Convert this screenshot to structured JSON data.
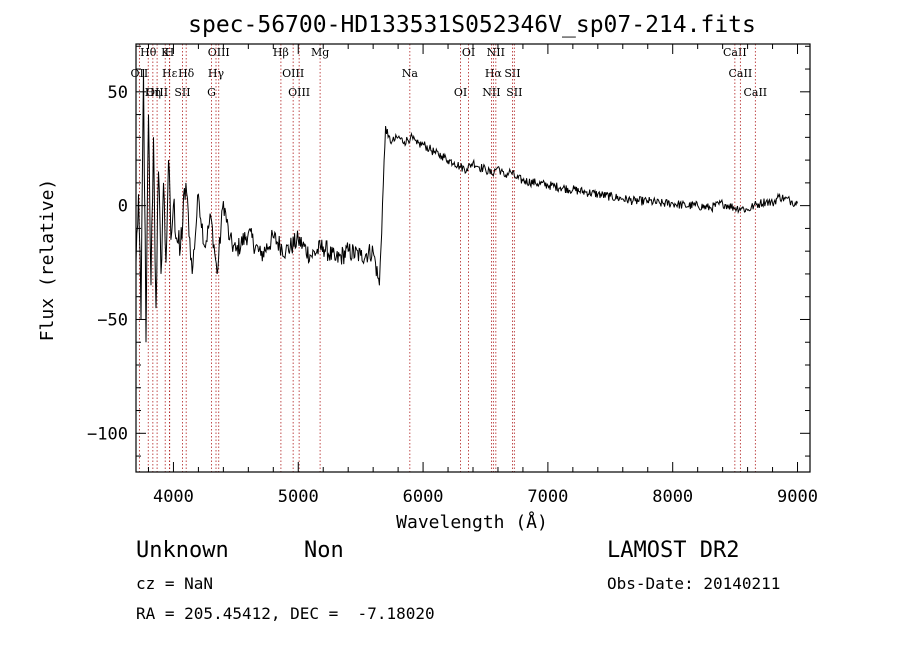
{
  "chart_data": {
    "type": "line",
    "title": "spec-56700-HD133531S052346V_sp07-214.fits",
    "xlabel": "Wavelength (Å)",
    "ylabel": "Flux (relative)",
    "xlim": [
      3700,
      9100
    ],
    "ylim": [
      -117,
      71
    ],
    "x_ticks": [
      4000,
      5000,
      6000,
      7000,
      8000,
      9000
    ],
    "x_tick_labels": [
      "4000",
      "5000",
      "6000",
      "7000",
      "8000",
      "9000"
    ],
    "y_ticks": [
      50,
      0,
      -50,
      -100
    ],
    "y_tick_labels": [
      "50",
      "0",
      "−50",
      "−100"
    ],
    "series": [
      {
        "x": [
          3700,
          3720,
          3740,
          3760,
          3780,
          3800,
          3820,
          3840,
          3860,
          3880,
          3900,
          3920,
          3940,
          3960,
          3980,
          4000,
          4050,
          4100,
          4150,
          4200,
          4250,
          4300,
          4350,
          4400,
          4450,
          4500,
          4600,
          4700,
          4800,
          4900,
          5000,
          5100,
          5200,
          5300,
          5400,
          5500,
          5600,
          5650,
          5700,
          5720,
          5750,
          5800,
          5850,
          5900,
          5950,
          6000,
          6050,
          6100,
          6150,
          6200,
          6250,
          6300,
          6350,
          6400,
          6450,
          6500,
          6550,
          6600,
          6650,
          6700,
          6750,
          6800,
          6900,
          7000,
          7100,
          7200,
          7300,
          7400,
          7500,
          7600,
          7700,
          7800,
          7900,
          8000,
          8100,
          8200,
          8300,
          8400,
          8450,
          8500,
          8550,
          8600,
          8650,
          8700,
          8750,
          8800,
          8850,
          8900,
          8950,
          9000
        ],
        "y": [
          -25,
          5,
          -50,
          60,
          -60,
          40,
          -35,
          30,
          -45,
          15,
          -30,
          10,
          -25,
          20,
          -15,
          0,
          -22,
          10,
          -30,
          5,
          -18,
          -5,
          -30,
          2,
          -15,
          -20,
          -12,
          -22,
          -14,
          -20,
          -15,
          -22,
          -18,
          -24,
          -20,
          -22,
          -20,
          -35,
          35,
          30,
          28,
          30,
          28,
          30,
          27,
          27,
          25,
          23,
          22,
          20,
          19,
          17,
          16,
          19,
          17,
          16,
          14,
          17,
          13,
          15,
          12,
          11,
          10,
          9,
          8,
          7,
          6,
          5,
          4,
          3,
          2,
          2,
          1,
          1,
          0,
          0,
          -1,
          1,
          0,
          -1,
          -1,
          -2,
          0,
          1,
          2,
          1,
          4,
          3,
          2,
          1
        ]
      }
    ],
    "lines": [
      {
        "label": "Hθ",
        "x": 3798
      },
      {
        "label": "OII",
        "x": 3727
      },
      {
        "label": "OIII",
        "x": 3869
      },
      {
        "label": "K",
        "x": 3934
      },
      {
        "label": "Hε",
        "x": 3970
      },
      {
        "label": "Hη",
        "x": 3835
      },
      {
        "label": "H",
        "x": 3968
      },
      {
        "label": "Hδ",
        "x": 4102
      },
      {
        "label": "SII",
        "x": 4072
      },
      {
        "label": "OIII",
        "x": 4363
      },
      {
        "label": "Hγ",
        "x": 4341
      },
      {
        "label": "G",
        "x": 4305
      },
      {
        "label": "Hβ",
        "x": 4861
      },
      {
        "label": "OIII",
        "x": 4959
      },
      {
        "label": "OIII",
        "x": 5007
      },
      {
        "label": "Mg",
        "x": 5175
      },
      {
        "label": "Na",
        "x": 5894
      },
      {
        "label": "OI",
        "x": 6300
      },
      {
        "label": "OI",
        "x": 6364
      },
      {
        "label": "Hα",
        "x": 6563
      },
      {
        "label": "NII",
        "x": 6548
      },
      {
        "label": "NII",
        "x": 6583
      },
      {
        "label": "SII",
        "x": 6716
      },
      {
        "label": "SII",
        "x": 6731
      },
      {
        "label": "CaII",
        "x": 8498
      },
      {
        "label": "CaII",
        "x": 8542
      },
      {
        "label": "CaII",
        "x": 8662
      }
    ]
  },
  "info": {
    "class": "Unknown",
    "subclass": "Non",
    "survey": "LAMOST DR2",
    "cz": "cz = NaN",
    "obs_date": "Obs-Date: 20140211",
    "coords": "RA = 205.45412, DEC =  -7.18020"
  }
}
